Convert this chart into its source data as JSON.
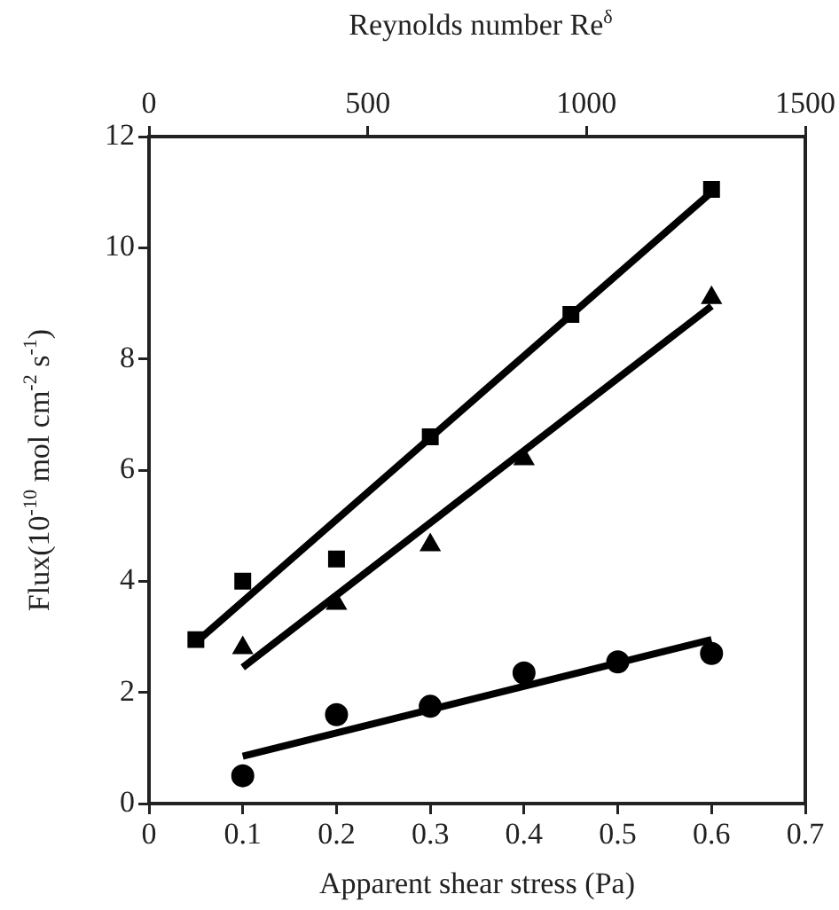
{
  "chart_data": {
    "type": "scatter",
    "xlabel": "Apparent shear stress (Pa)",
    "ylabel": "Flux(10$^{-10}$ mol cm$^{-2}$ s$^{-1}$)",
    "x2label": "Reynolds number Re$^{δ}$",
    "xlim": [
      0,
      0.7
    ],
    "xticks": [
      0,
      0.1,
      0.2,
      0.3,
      0.4,
      0.5,
      0.6,
      0.7
    ],
    "x2lim": [
      0,
      1500
    ],
    "x2ticks": [
      0,
      500,
      1000,
      1500
    ],
    "ylim": [
      0,
      12
    ],
    "yticks": [
      0,
      2,
      4,
      6,
      8,
      10,
      12
    ],
    "grid": false,
    "legend": false,
    "series": [
      {
        "color": "#000000",
        "marker": "square",
        "x": [
          0.05,
          0.1,
          0.2,
          0.3,
          0.45,
          0.6
        ],
        "values": [
          2.95,
          4.0,
          4.4,
          6.6,
          8.8,
          11.05
        ]
      },
      {
        "color": "#000000",
        "marker": "triangle",
        "x": [
          0.1,
          0.2,
          0.3,
          0.4,
          0.6
        ],
        "values": [
          2.8,
          3.6,
          4.65,
          6.2,
          9.1
        ]
      },
      {
        "color": "#000000",
        "marker": "circle",
        "x": [
          0.1,
          0.2,
          0.3,
          0.4,
          0.5,
          0.6
        ],
        "values": [
          0.5,
          1.6,
          1.75,
          2.35,
          2.55,
          2.7
        ]
      },
      {
        "type": "line",
        "color": "#000000",
        "marker": "none",
        "x": [
          0.05,
          0.6
        ],
        "values": [
          2.9,
          11.0
        ]
      },
      {
        "type": "line",
        "color": "#000000",
        "marker": "none",
        "x": [
          0.1,
          0.6
        ],
        "values": [
          2.45,
          8.95
        ]
      },
      {
        "type": "line",
        "color": "#000000",
        "marker": "none",
        "x": [
          0.1,
          0.6
        ],
        "values": [
          0.85,
          2.95
        ]
      }
    ]
  }
}
